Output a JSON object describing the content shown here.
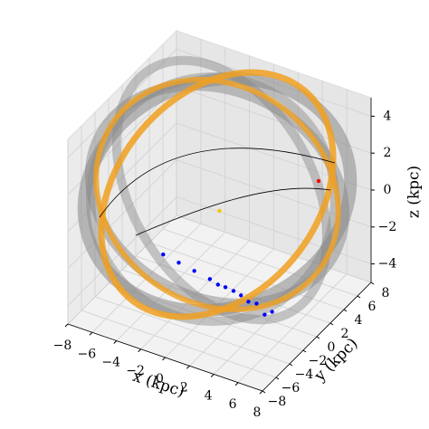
{
  "chart_data": {
    "type": "scatter3d",
    "xlabel": "x (kpc)",
    "ylabel": "y (kpc)",
    "zlabel": "z (kpc)",
    "xlim": [
      -8,
      8
    ],
    "ylim": [
      -8,
      8
    ],
    "zlim": [
      -5,
      5
    ],
    "xticks": [
      {
        "value": -8,
        "label": "−8"
      },
      {
        "value": -6,
        "label": "−6"
      },
      {
        "value": -4,
        "label": "−4"
      },
      {
        "value": -2,
        "label": "−2"
      },
      0,
      2,
      4,
      6,
      8
    ],
    "yticks": [
      {
        "value": -8,
        "label": "−8"
      },
      {
        "value": -6,
        "label": "−6"
      },
      {
        "value": -4,
        "label": "−4"
      },
      {
        "value": -2,
        "label": "−2"
      },
      0,
      2,
      4,
      6,
      8
    ],
    "zticks": [
      {
        "value": -4,
        "label": "−4"
      },
      {
        "value": -2,
        "label": "−2"
      },
      0,
      2,
      4
    ],
    "grid": true,
    "series": [
      {
        "color": "#0000ff",
        "x": [
          6,
          5.5,
          5,
          4.5,
          4,
          3.5,
          3,
          2.5,
          2,
          1,
          0,
          -1
        ],
        "y": [
          -3,
          -3.2,
          -3.5,
          -3.8,
          -4,
          -4.2,
          -4.5,
          -4.7,
          -5,
          -5.5,
          -6,
          -6.5
        ],
        "z": [
          -3,
          -3.2,
          -2.6,
          -2.5,
          -2.2,
          -2,
          -1.8,
          -1.7,
          -1.4,
          -1,
          -0.6,
          -0.2
        ]
      },
      {
        "color": "#ff0000",
        "x": [
          4.8
        ],
        "y": [
          6
        ],
        "z": [
          0.5
        ]
      },
      {
        "color": "#f5c400",
        "x": [
          0
        ],
        "y": [
          0
        ],
        "z": [
          0
        ]
      }
    ]
  }
}
